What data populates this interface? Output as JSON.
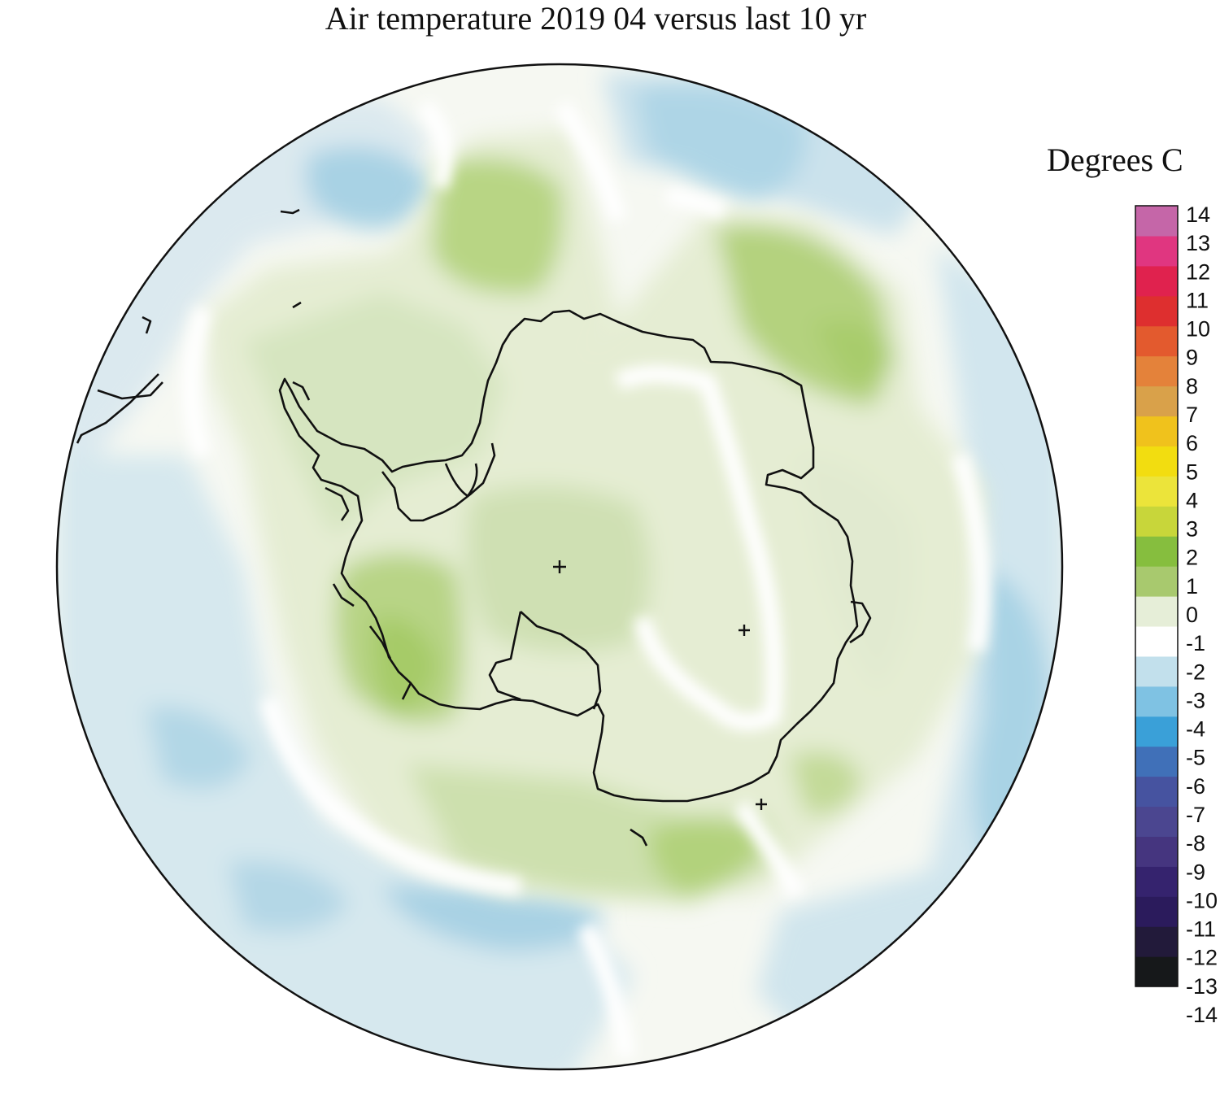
{
  "title": "Air temperature 2019 04 versus last 10 yr",
  "legend": {
    "title": "Degrees C",
    "ticks": [
      "14",
      "13",
      "12",
      "11",
      "10",
      "9",
      "8",
      "7",
      "6",
      "5",
      "4",
      "3",
      "2",
      "1",
      "0",
      "-1",
      "-2",
      "-3",
      "-4",
      "-5",
      "-6",
      "-7",
      "-8",
      "-9",
      "-10",
      "-11",
      "-12",
      "-13",
      "-14"
    ],
    "range": [
      -14,
      14
    ],
    "colors": [
      "#16181a",
      "#221a3a",
      "#2b1b5c",
      "#35236e",
      "#45357f",
      "#4b4690",
      "#4653a0",
      "#4070b8",
      "#3aa0d8",
      "#7fc2e3",
      "#c2e0ec",
      "#ffffff",
      "#e6eed8",
      "#a8c96e",
      "#86be3e",
      "#c8d63a",
      "#ece43a",
      "#f2dd10",
      "#f0c21c",
      "#d9a14a",
      "#e4823a",
      "#e35a2e",
      "#de2f2f",
      "#e0224e",
      "#e03680",
      "#c566a8"
    ]
  },
  "colors": {
    "ocean_neutral": "#f5f7f1",
    "cold_light": "#dce9ef",
    "cold_medium": "#b9d9e6",
    "cold_strong": "#9fcde2",
    "warm_light": "#e5ecd4",
    "warm_medium": "#cfe0b3",
    "warm_strong": "#abce78",
    "coastline": "#111111"
  }
}
